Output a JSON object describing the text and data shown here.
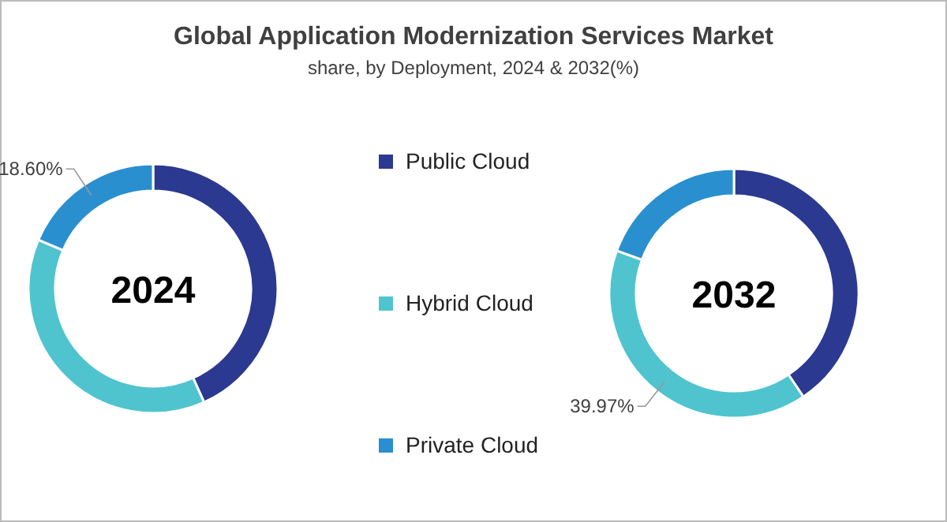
{
  "chart_data": {
    "type": "donut",
    "title": "Global Application Modernization Services Market",
    "subtitle": "share, by Deployment, 2024 & 2032(%)",
    "categories": [
      "Public Cloud",
      "Hybrid Cloud",
      "Private Cloud"
    ],
    "colors": [
      "#2b3990",
      "#4fc4cf",
      "#2a8fcf"
    ],
    "legend": "right",
    "series": [
      {
        "name": "2024",
        "values": [
          43.3,
          38.1,
          18.6
        ],
        "value_labels": [
          null,
          null,
          "18.60%"
        ]
      },
      {
        "name": "2032",
        "values": [
          40.6,
          39.97,
          19.43
        ],
        "value_labels": [
          null,
          "39.97%",
          null
        ]
      }
    ]
  }
}
